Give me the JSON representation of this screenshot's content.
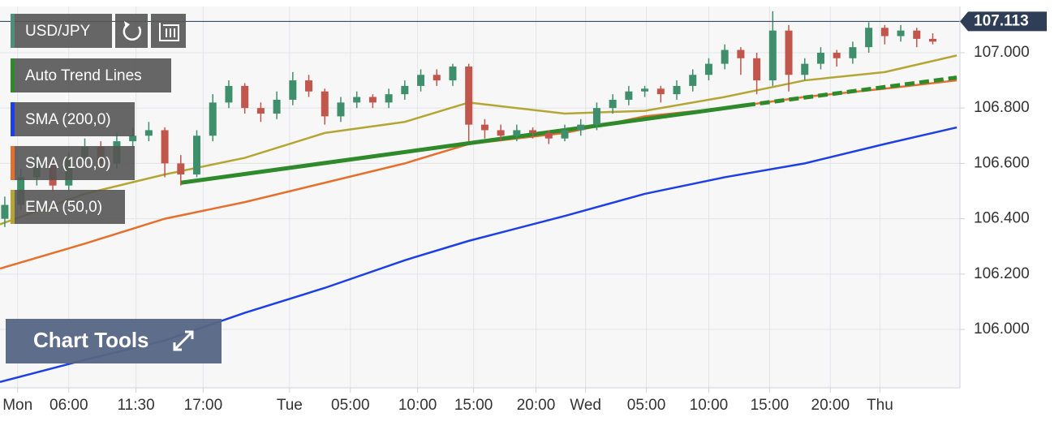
{
  "chart_data": {
    "type": "candlestick",
    "symbol": "USD/JPY",
    "symbol_color": "#4f8f7a",
    "up_color": "#3f8f6c",
    "down_color": "#c0564c",
    "x": [
      0,
      1,
      2,
      3,
      4,
      5,
      6,
      7,
      8,
      9,
      10,
      11,
      12,
      13,
      14,
      15,
      16,
      17,
      18,
      19,
      20,
      21,
      22,
      23,
      24,
      25,
      26,
      27,
      28,
      29,
      30,
      31,
      32,
      33,
      34,
      35,
      36,
      37,
      38,
      39,
      40,
      41,
      42,
      43,
      44,
      45,
      46,
      47,
      48,
      49,
      50,
      51,
      52,
      53,
      54,
      55,
      56,
      57,
      58
    ],
    "open": [
      106.4,
      106.45,
      106.55,
      106.6,
      106.52,
      106.62,
      106.66,
      106.6,
      106.68,
      106.7,
      106.72,
      106.6,
      106.56,
      106.7,
      106.82,
      106.88,
      106.8,
      106.78,
      106.83,
      106.9,
      106.86,
      106.77,
      106.82,
      106.84,
      106.82,
      106.85,
      106.88,
      106.92,
      106.9,
      106.95,
      106.74,
      106.72,
      106.7,
      106.72,
      106.71,
      106.69,
      106.72,
      106.74,
      106.8,
      106.83,
      106.86,
      106.87,
      106.85,
      106.88,
      106.92,
      106.96,
      107.01,
      106.98,
      106.9,
      107.08,
      106.92,
      106.96,
      107.0,
      106.98,
      107.02,
      107.09,
      107.06,
      107.08,
      107.05
    ],
    "high": [
      106.48,
      106.58,
      106.63,
      106.62,
      106.64,
      106.69,
      106.68,
      106.71,
      106.73,
      106.75,
      106.73,
      106.63,
      106.72,
      106.85,
      106.9,
      106.89,
      106.82,
      106.86,
      106.93,
      106.92,
      106.87,
      106.84,
      106.86,
      106.85,
      106.87,
      106.9,
      106.94,
      106.94,
      106.96,
      106.96,
      106.76,
      106.74,
      106.74,
      106.73,
      106.72,
      106.74,
      106.76,
      106.82,
      106.85,
      106.88,
      106.88,
      106.88,
      106.9,
      106.94,
      106.98,
      107.03,
      107.02,
      107.0,
      107.15,
      107.1,
      106.98,
      107.02,
      107.01,
      107.04,
      107.11,
      107.1,
      107.1,
      107.09,
      107.07
    ],
    "low": [
      106.37,
      106.43,
      106.52,
      106.5,
      106.5,
      106.6,
      106.58,
      106.58,
      106.66,
      106.68,
      106.55,
      106.52,
      106.55,
      106.68,
      106.8,
      106.78,
      106.75,
      106.76,
      106.81,
      106.84,
      106.74,
      106.75,
      106.8,
      106.8,
      106.8,
      106.83,
      106.86,
      106.88,
      106.88,
      106.68,
      106.69,
      106.68,
      106.68,
      106.69,
      106.67,
      106.68,
      106.7,
      106.72,
      106.78,
      106.81,
      106.84,
      106.82,
      106.83,
      106.86,
      106.9,
      106.94,
      106.92,
      106.85,
      106.88,
      106.86,
      106.9,
      106.94,
      106.95,
      106.96,
      107.0,
      107.03,
      107.04,
      107.02,
      107.03
    ],
    "close": [
      106.45,
      106.55,
      106.6,
      106.52,
      106.62,
      106.66,
      106.6,
      106.68,
      106.7,
      106.72,
      106.6,
      106.56,
      106.7,
      106.82,
      106.88,
      106.8,
      106.78,
      106.83,
      106.9,
      106.86,
      106.77,
      106.82,
      106.84,
      106.82,
      106.85,
      106.88,
      106.92,
      106.9,
      106.95,
      106.74,
      106.72,
      106.7,
      106.72,
      106.71,
      106.69,
      106.72,
      106.74,
      106.8,
      106.83,
      106.86,
      106.87,
      106.85,
      106.88,
      106.92,
      106.96,
      107.01,
      106.98,
      106.9,
      107.08,
      106.92,
      106.96,
      107.0,
      106.98,
      107.02,
      107.09,
      107.06,
      107.08,
      107.05,
      107.04
    ],
    "trend": {
      "name": "Auto Trend Lines",
      "color": "#2e8a2a",
      "x": [
        11.0,
        46.3,
        59.5
      ],
      "values": [
        106.53,
        106.81,
        106.91
      ]
    },
    "series": [
      {
        "name": "SMA (200,0)",
        "color": "#1c3fe6",
        "x": [
          -0.3,
          5,
          10,
          15,
          20,
          25,
          29,
          35,
          40,
          45,
          50,
          55,
          59.5
        ],
        "values": [
          105.81,
          105.89,
          105.96,
          106.06,
          106.15,
          106.25,
          106.32,
          106.41,
          106.49,
          106.55,
          106.6,
          106.67,
          106.73
        ]
      },
      {
        "name": "SMA (100,0)",
        "color": "#e5702d",
        "x": [
          -0.3,
          5,
          10,
          15,
          20,
          25,
          29,
          35,
          40,
          45,
          50,
          55,
          59.5
        ],
        "values": [
          106.22,
          106.31,
          106.4,
          106.46,
          106.53,
          106.6,
          106.67,
          106.71,
          106.77,
          106.8,
          106.84,
          106.87,
          106.9
        ]
      },
      {
        "name": "EMA (50,0)",
        "color": "#b5a535",
        "x": [
          -0.3,
          5,
          10,
          15,
          20,
          25,
          29,
          35,
          40,
          45,
          50,
          55,
          59.5
        ],
        "values": [
          106.38,
          106.49,
          106.56,
          106.62,
          106.71,
          106.75,
          106.82,
          106.78,
          106.79,
          106.84,
          106.9,
          106.93,
          106.99
        ]
      }
    ],
    "last_price": 107.113,
    "xlim": [
      -0.3,
      59.7
    ],
    "ylim": [
      105.789,
      107.167
    ],
    "xticks": [
      {
        "value": 0.8,
        "label": "Mon"
      },
      {
        "value": 4.0,
        "label": "06:00"
      },
      {
        "value": 8.2,
        "label": "11:30"
      },
      {
        "value": 12.4,
        "label": "17:00"
      },
      {
        "value": 17.8,
        "label": "Tue"
      },
      {
        "value": 21.6,
        "label": "05:00"
      },
      {
        "value": 25.8,
        "label": "10:00"
      },
      {
        "value": 29.3,
        "label": "15:00"
      },
      {
        "value": 33.2,
        "label": "20:00"
      },
      {
        "value": 36.3,
        "label": "Wed"
      },
      {
        "value": 40.1,
        "label": "05:00"
      },
      {
        "value": 44.0,
        "label": "10:00"
      },
      {
        "value": 47.8,
        "label": "15:00"
      },
      {
        "value": 51.6,
        "label": "20:00"
      },
      {
        "value": 54.7,
        "label": "Thu"
      }
    ],
    "yticks": [
      {
        "value": 106.0,
        "label": "106.000"
      },
      {
        "value": 106.2,
        "label": "106.200"
      },
      {
        "value": 106.4,
        "label": "106.400"
      },
      {
        "value": 106.6,
        "label": "106.600"
      },
      {
        "value": 106.8,
        "label": "106.800"
      },
      {
        "value": 107.0,
        "label": "107.000"
      }
    ],
    "grid": true
  },
  "ui": {
    "chart_tools": "Chart Tools"
  }
}
